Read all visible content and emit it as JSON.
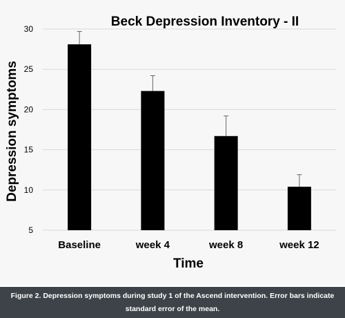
{
  "chart_data": {
    "type": "bar",
    "title": "Beck Depression Inventory - II",
    "xlabel": "Time",
    "ylabel": "Depression symptoms",
    "categories": [
      "Baseline",
      "week 4",
      "week 8",
      "week 12"
    ],
    "values": [
      28.1,
      22.3,
      16.7,
      10.4
    ],
    "error_bars": [
      1.6,
      1.9,
      2.5,
      1.5
    ],
    "ylim": [
      5,
      30
    ],
    "yticks": [
      5,
      10,
      15,
      20,
      25,
      30
    ],
    "grid": true,
    "bar_color": "#000000",
    "grid_color": "#d9d9d9"
  },
  "caption": "Figure 2. Depression symptoms during study 1 of the Ascend intervention. Error bars indicate standard error of the mean."
}
